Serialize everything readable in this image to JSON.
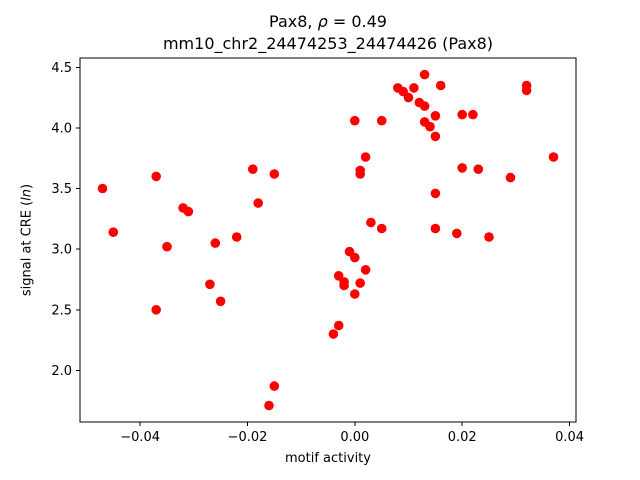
{
  "chart_data": {
    "type": "scatter",
    "title": {
      "prefix": "Pax8, ",
      "rho": "ρ",
      "suffix": " = 0.49"
    },
    "subtitle": "mm10_chr2_24474253_24474426 (Pax8)",
    "xlabel": "motif activity",
    "ylabel": {
      "prefix": "signal at CRE (",
      "italic": "ln",
      "suffix": ")"
    },
    "xlim": [
      -0.0512,
      0.0412
    ],
    "ylim": [
      1.574,
      4.577
    ],
    "grid": false,
    "legend": "none",
    "point_color": "#ff0000",
    "xticks": {
      "values": [
        -0.04,
        -0.02,
        0.0,
        0.02,
        0.04
      ],
      "labels": [
        "−0.04",
        "−0.02",
        "0.00",
        "0.02",
        "0.04"
      ]
    },
    "yticks": {
      "values": [
        2.0,
        2.5,
        3.0,
        3.5,
        4.0,
        4.5
      ],
      "labels": [
        "2.0",
        "2.5",
        "3.0",
        "3.5",
        "4.0",
        "4.5"
      ]
    },
    "points": [
      [
        -0.047,
        3.5
      ],
      [
        -0.045,
        3.14
      ],
      [
        -0.037,
        3.6
      ],
      [
        -0.037,
        2.5
      ],
      [
        -0.035,
        3.02
      ],
      [
        -0.032,
        3.34
      ],
      [
        -0.031,
        3.31
      ],
      [
        -0.027,
        2.71
      ],
      [
        -0.026,
        3.05
      ],
      [
        -0.025,
        2.57
      ],
      [
        -0.022,
        3.1
      ],
      [
        -0.019,
        3.66
      ],
      [
        -0.018,
        3.38
      ],
      [
        -0.016,
        1.71
      ],
      [
        -0.015,
        3.62
      ],
      [
        -0.015,
        1.87
      ],
      [
        -0.004,
        2.3
      ],
      [
        -0.003,
        2.37
      ],
      [
        -0.003,
        2.78
      ],
      [
        -0.002,
        2.73
      ],
      [
        -0.002,
        2.7
      ],
      [
        -0.001,
        2.98
      ],
      [
        0.0,
        2.93
      ],
      [
        0.0,
        2.63
      ],
      [
        0.001,
        2.72
      ],
      [
        0.002,
        2.83
      ],
      [
        0.0,
        4.06
      ],
      [
        0.001,
        3.65
      ],
      [
        0.001,
        3.62
      ],
      [
        0.002,
        3.76
      ],
      [
        0.003,
        3.22
      ],
      [
        0.005,
        4.06
      ],
      [
        0.005,
        3.17
      ],
      [
        0.008,
        4.33
      ],
      [
        0.009,
        4.3
      ],
      [
        0.01,
        4.25
      ],
      [
        0.011,
        4.33
      ],
      [
        0.012,
        4.21
      ],
      [
        0.013,
        4.44
      ],
      [
        0.013,
        4.18
      ],
      [
        0.013,
        4.05
      ],
      [
        0.014,
        4.01
      ],
      [
        0.015,
        4.1
      ],
      [
        0.015,
        3.93
      ],
      [
        0.015,
        3.46
      ],
      [
        0.015,
        3.17
      ],
      [
        0.016,
        4.35
      ],
      [
        0.02,
        4.11
      ],
      [
        0.022,
        4.11
      ],
      [
        0.02,
        3.67
      ],
      [
        0.023,
        3.66
      ],
      [
        0.019,
        3.13
      ],
      [
        0.025,
        3.1
      ],
      [
        0.029,
        3.59
      ],
      [
        0.032,
        4.35
      ],
      [
        0.032,
        4.31
      ],
      [
        0.037,
        3.76
      ]
    ]
  }
}
